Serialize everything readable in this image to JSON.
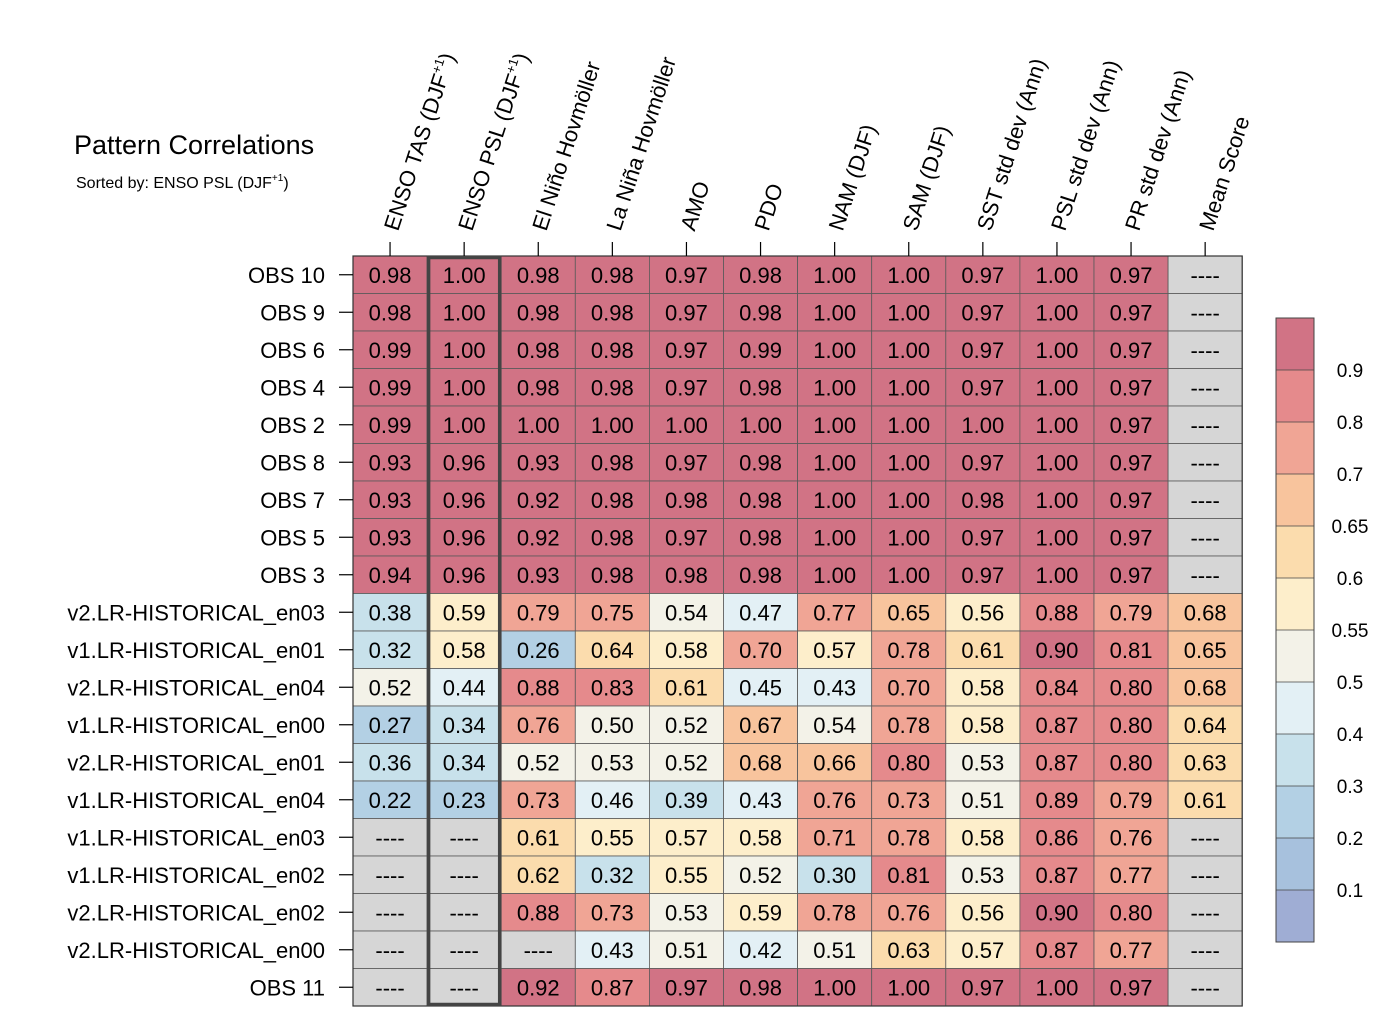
{
  "chart_data": {
    "type": "heatmap",
    "title": "Pattern Correlations",
    "subtitle_prefix": "Sorted by: ENSO PSL (DJF",
    "subtitle_sup": "+1",
    "subtitle_suffix": ")",
    "sorted_by_column": 1,
    "columns": [
      {
        "label": "ENSO TAS (DJF",
        "sup": "+1",
        "suffix": ")"
      },
      {
        "label": "ENSO PSL (DJF",
        "sup": "+1",
        "suffix": ")"
      },
      {
        "label": "El Niño Hovmöller"
      },
      {
        "label": "La Niña Hovmöller"
      },
      {
        "label": "AMO"
      },
      {
        "label": "PDO"
      },
      {
        "label": "NAM (DJF)"
      },
      {
        "label": "SAM (DJF)"
      },
      {
        "label": "SST std dev (Ann)"
      },
      {
        "label": "PSL std dev (Ann)"
      },
      {
        "label": "PR std dev (Ann)"
      },
      {
        "label": "Mean Score"
      }
    ],
    "rows": [
      "OBS 10",
      "OBS 9",
      "OBS 6",
      "OBS 4",
      "OBS 2",
      "OBS 8",
      "OBS 7",
      "OBS 5",
      "OBS 3",
      "v2.LR-HISTORICAL_en03",
      "v1.LR-HISTORICAL_en01",
      "v2.LR-HISTORICAL_en04",
      "v1.LR-HISTORICAL_en00",
      "v2.LR-HISTORICAL_en01",
      "v1.LR-HISTORICAL_en04",
      "v1.LR-HISTORICAL_en03",
      "v1.LR-HISTORICAL_en02",
      "v2.LR-HISTORICAL_en02",
      "v2.LR-HISTORICAL_en00",
      "OBS 11"
    ],
    "values": [
      [
        0.98,
        1.0,
        0.98,
        0.98,
        0.97,
        0.98,
        1.0,
        1.0,
        0.97,
        1.0,
        0.97,
        null
      ],
      [
        0.98,
        1.0,
        0.98,
        0.98,
        0.97,
        0.98,
        1.0,
        1.0,
        0.97,
        1.0,
        0.97,
        null
      ],
      [
        0.99,
        1.0,
        0.98,
        0.98,
        0.97,
        0.99,
        1.0,
        1.0,
        0.97,
        1.0,
        0.97,
        null
      ],
      [
        0.99,
        1.0,
        0.98,
        0.98,
        0.97,
        0.98,
        1.0,
        1.0,
        0.97,
        1.0,
        0.97,
        null
      ],
      [
        0.99,
        1.0,
        1.0,
        1.0,
        1.0,
        1.0,
        1.0,
        1.0,
        1.0,
        1.0,
        0.97,
        null
      ],
      [
        0.93,
        0.96,
        0.93,
        0.98,
        0.97,
        0.98,
        1.0,
        1.0,
        0.97,
        1.0,
        0.97,
        null
      ],
      [
        0.93,
        0.96,
        0.92,
        0.98,
        0.98,
        0.98,
        1.0,
        1.0,
        0.98,
        1.0,
        0.97,
        null
      ],
      [
        0.93,
        0.96,
        0.92,
        0.98,
        0.97,
        0.98,
        1.0,
        1.0,
        0.97,
        1.0,
        0.97,
        null
      ],
      [
        0.94,
        0.96,
        0.93,
        0.98,
        0.98,
        0.98,
        1.0,
        1.0,
        0.97,
        1.0,
        0.97,
        null
      ],
      [
        0.38,
        0.59,
        0.79,
        0.75,
        0.54,
        0.47,
        0.77,
        0.65,
        0.56,
        0.88,
        0.79,
        0.68
      ],
      [
        0.32,
        0.58,
        0.26,
        0.64,
        0.58,
        0.7,
        0.57,
        0.78,
        0.61,
        0.9,
        0.81,
        0.65
      ],
      [
        0.52,
        0.44,
        0.88,
        0.83,
        0.61,
        0.45,
        0.43,
        0.7,
        0.58,
        0.84,
        0.8,
        0.68
      ],
      [
        0.27,
        0.34,
        0.76,
        0.5,
        0.52,
        0.67,
        0.54,
        0.78,
        0.58,
        0.87,
        0.8,
        0.64
      ],
      [
        0.36,
        0.34,
        0.52,
        0.53,
        0.52,
        0.68,
        0.66,
        0.8,
        0.53,
        0.87,
        0.8,
        0.63
      ],
      [
        0.22,
        0.23,
        0.73,
        0.46,
        0.39,
        0.43,
        0.76,
        0.73,
        0.51,
        0.89,
        0.79,
        0.61
      ],
      [
        null,
        null,
        0.61,
        0.55,
        0.57,
        0.58,
        0.71,
        0.78,
        0.58,
        0.86,
        0.76,
        null
      ],
      [
        null,
        null,
        0.62,
        0.32,
        0.55,
        0.52,
        0.3,
        0.81,
        0.53,
        0.87,
        0.77,
        null
      ],
      [
        null,
        null,
        0.88,
        0.73,
        0.53,
        0.59,
        0.78,
        0.76,
        0.56,
        0.9,
        0.8,
        null
      ],
      [
        null,
        null,
        null,
        0.43,
        0.51,
        0.42,
        0.51,
        0.63,
        0.57,
        0.87,
        0.77,
        null
      ],
      [
        null,
        null,
        0.92,
        0.87,
        0.97,
        0.98,
        1.0,
        1.0,
        0.97,
        1.0,
        0.97,
        null
      ]
    ],
    "missing_label": "----",
    "missing_color": "#d6d6d6",
    "colorbar": {
      "levels": [
        0.1,
        0.2,
        0.3,
        0.4,
        0.5,
        0.55,
        0.6,
        0.65,
        0.7,
        0.8,
        0.9
      ],
      "tick_labels": [
        "0.1",
        "0.2",
        "0.3",
        "0.4",
        "0.5",
        "0.55",
        "0.6",
        "0.65",
        "0.7",
        "0.8",
        "0.9"
      ],
      "colors": [
        "#9fadd4",
        "#a7c1dd",
        "#b3d0e4",
        "#c8e1eb",
        "#e3f0f5",
        "#f3f2e8",
        "#fdeecb",
        "#fbdcad",
        "#f8c49d",
        "#f0a595",
        "#e58a8c",
        "#d17385"
      ]
    }
  }
}
